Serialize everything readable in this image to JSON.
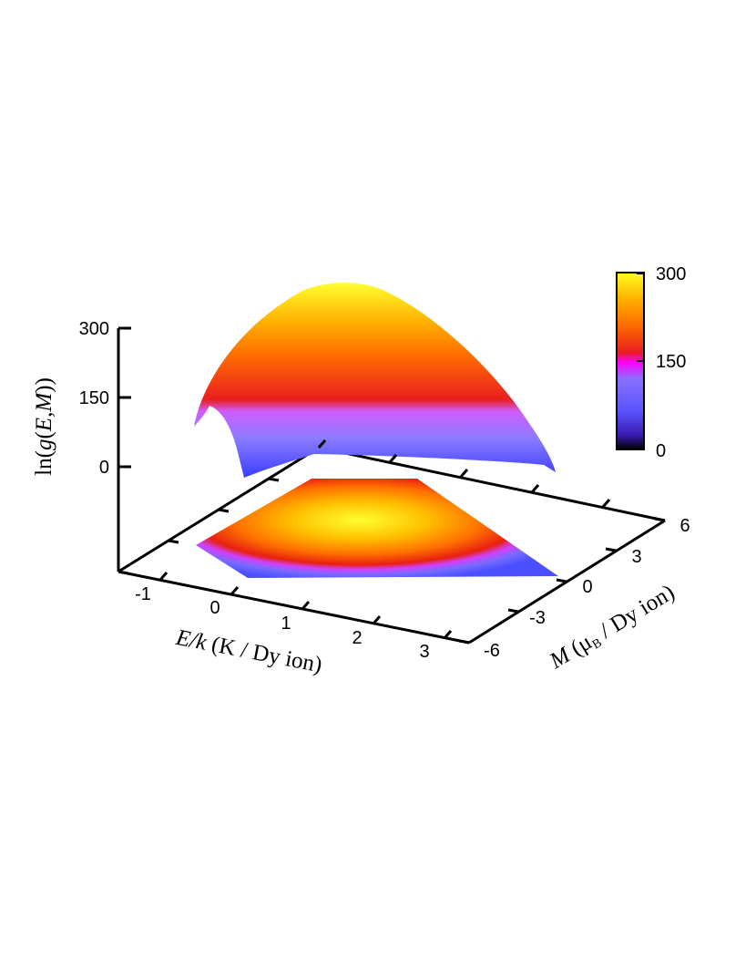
{
  "chart_data": {
    "type": "surface3d",
    "z_axis": {
      "label": {
        "prefix": "ln(",
        "italic": "g",
        "middle": "(",
        "var1": "E",
        "comma": ",",
        "var2": "M",
        "suffix": "))"
      },
      "ticks": [
        "300",
        "150",
        "0"
      ],
      "range": [
        -120,
        300
      ]
    },
    "x_axis": {
      "label": {
        "var": "E/k",
        "rest": " (K / Dy ion)"
      },
      "ticks": [
        "-1",
        "0",
        "1",
        "2",
        "3"
      ],
      "range": [
        -1.3,
        3.6
      ]
    },
    "y_axis": {
      "label": {
        "var": "M",
        "open": " (μ",
        "sub": "B",
        "rest": " / Dy ion)"
      },
      "ticks": [
        "-6",
        "-3",
        "0",
        "3",
        "6"
      ],
      "range": [
        -6,
        6
      ]
    },
    "colorbar": {
      "ticks": [
        "300",
        "150",
        "0"
      ],
      "range": [
        0,
        300
      ],
      "palette": [
        "#000000",
        "#3a1ab0",
        "#5a55ff",
        "#8a70ff",
        "#ff00ff",
        "#e81e1e",
        "#ff6a00",
        "#ffb000",
        "#ffff20"
      ]
    },
    "surface": {
      "description_values": {
        "peak_ln_g": 300,
        "peak_E": 1.0,
        "peak_M": 0
      }
    }
  }
}
